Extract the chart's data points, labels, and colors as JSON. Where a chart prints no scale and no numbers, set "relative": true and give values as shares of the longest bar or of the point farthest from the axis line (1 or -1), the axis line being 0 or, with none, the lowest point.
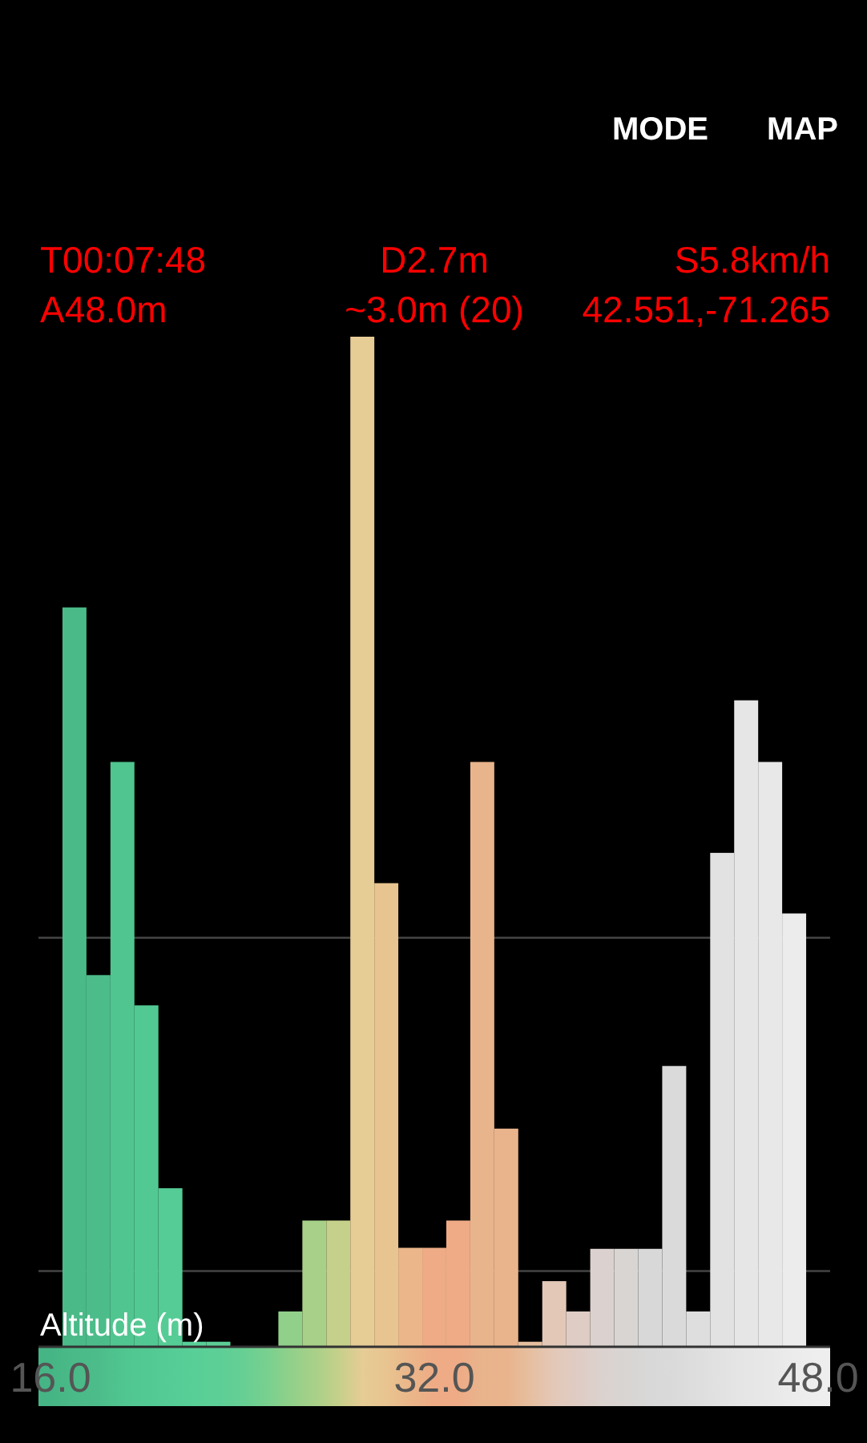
{
  "chart_data": {
    "type": "bar",
    "relative": true,
    "xlabel": "Altitude (m)",
    "x": [
      16,
      17,
      18,
      19,
      20,
      21,
      22,
      23,
      24,
      25,
      26,
      27,
      28,
      29,
      30,
      31,
      32,
      33,
      34,
      35,
      36,
      37,
      38,
      39,
      40,
      41,
      42,
      43,
      44,
      45,
      46,
      47,
      48
    ],
    "values": [
      0,
      0.732,
      0.368,
      0.579,
      0.338,
      0.157,
      0.005,
      0.005,
      0,
      0,
      0.035,
      0.125,
      0.125,
      1,
      0.459,
      0.098,
      0.098,
      0.125,
      0.579,
      0.216,
      0.005,
      0.065,
      0.035,
      0.097,
      0.097,
      0.097,
      0.278,
      0.035,
      0.489,
      0.64,
      0.579,
      0.429,
      0
    ],
    "colors": [
      "#45b585",
      "#4aba88",
      "#4cbd8a",
      "#50c590",
      "#52c993",
      "#55cc95",
      "#58cf97",
      "#5ccf96",
      "#66cf94",
      "#78d08f",
      "#90d08a",
      "#a8d088",
      "#c5d08a",
      "#e6cc95",
      "#e8c490",
      "#ebb68a",
      "#eeab85",
      "#eeab86",
      "#e8b48c",
      "#e9b38c",
      "#e6bfa0",
      "#e3c8b8",
      "#dfccc4",
      "#dbd2cf",
      "#d8d5d3",
      "#d8d8d8",
      "#dadada",
      "#dedede",
      "#e2e2e2",
      "#e6e6e6",
      "#e8e8e8",
      "#ececec",
      "#eeeeee"
    ],
    "xlim": [
      15.5,
      48.5
    ],
    "xticks": [
      {
        "value": 16,
        "label": "16.0"
      },
      {
        "value": 32,
        "label": "32.0"
      },
      {
        "value": 48,
        "label": "48.0"
      }
    ],
    "ref_lines": [
      {
        "axis": "y",
        "value": 0.405,
        "color": "#444444"
      },
      {
        "axis": "y",
        "value": 0.075,
        "color": "#444444"
      }
    ],
    "annotations": [
      "MODE",
      "MAP",
      "T00:07:48",
      "D2.7m",
      "S5.8km/h",
      "A48.0m",
      "~3.0m (20)",
      "42.551,-71.265"
    ]
  }
}
